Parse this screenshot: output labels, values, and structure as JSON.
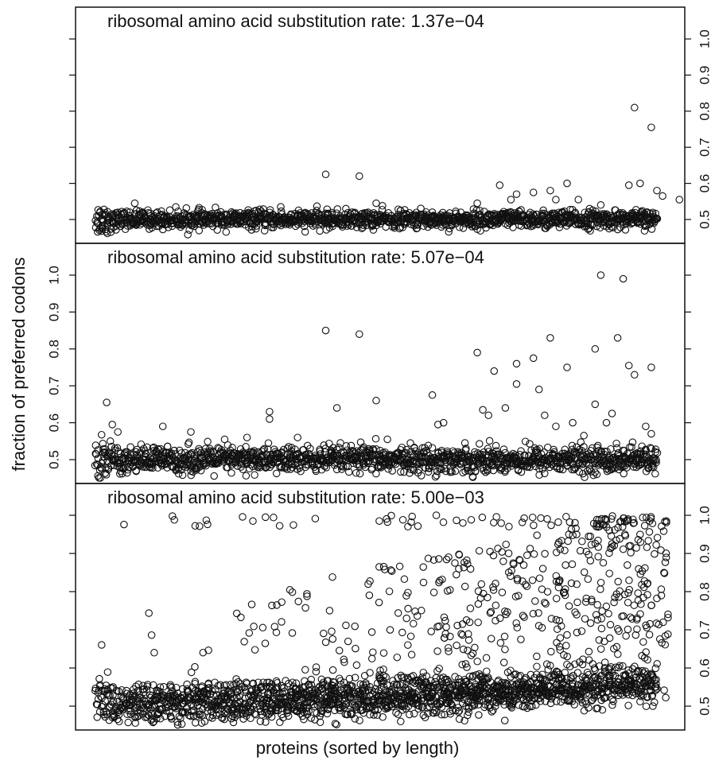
{
  "chart_data": {
    "type": "scatter",
    "xlabel": "proteins (sorted by length)",
    "ylabel": "fraction of preferred codons",
    "marker": "open-circle",
    "color": "#111111",
    "panels": [
      {
        "title": "ribosomal amino acid substitution rate: 1.37e−04",
        "ylim": [
          0.45,
          1.05
        ],
        "y_ticks": [
          "0.5",
          "0.6",
          "0.7",
          "0.8",
          "0.9",
          "1.0"
        ],
        "y_axis_side": "right",
        "baseline": 0.5,
        "spread": 0.012,
        "extra_points": [
          {
            "x": 0.41,
            "y": 0.625
          },
          {
            "x": 0.47,
            "y": 0.62
          },
          {
            "x": 0.5,
            "y": 0.545
          },
          {
            "x": 0.68,
            "y": 0.545
          },
          {
            "x": 0.72,
            "y": 0.595
          },
          {
            "x": 0.74,
            "y": 0.555
          },
          {
            "x": 0.75,
            "y": 0.57
          },
          {
            "x": 0.78,
            "y": 0.575
          },
          {
            "x": 0.81,
            "y": 0.58
          },
          {
            "x": 0.84,
            "y": 0.6
          },
          {
            "x": 0.86,
            "y": 0.555
          },
          {
            "x": 0.82,
            "y": 0.555
          },
          {
            "x": 0.88,
            "y": 0.53
          },
          {
            "x": 0.9,
            "y": 0.54
          },
          {
            "x": 0.95,
            "y": 0.595
          },
          {
            "x": 0.96,
            "y": 0.81
          },
          {
            "x": 0.97,
            "y": 0.6
          },
          {
            "x": 0.99,
            "y": 0.755
          },
          {
            "x": 1.0,
            "y": 0.58
          },
          {
            "x": 1.01,
            "y": 0.565
          },
          {
            "x": 1.05,
            "y": 0.555
          },
          {
            "x": 0.6,
            "y": 0.52
          },
          {
            "x": 0.33,
            "y": 0.535
          },
          {
            "x": 0.07,
            "y": 0.545
          }
        ]
      },
      {
        "title": "ribosomal amino acid substitution rate: 5.07e−04",
        "ylim": [
          0.45,
          1.05
        ],
        "y_ticks": [
          "0.5",
          "0.6",
          "0.7",
          "0.8",
          "0.9",
          "1.0"
        ],
        "y_axis_side": "left",
        "baseline": 0.5,
        "spread": 0.018,
        "extra_points": [
          {
            "x": 0.02,
            "y": 0.655
          },
          {
            "x": 0.03,
            "y": 0.595
          },
          {
            "x": 0.04,
            "y": 0.575
          },
          {
            "x": 0.12,
            "y": 0.59
          },
          {
            "x": 0.17,
            "y": 0.575
          },
          {
            "x": 0.31,
            "y": 0.63
          },
          {
            "x": 0.31,
            "y": 0.61
          },
          {
            "x": 0.41,
            "y": 0.85
          },
          {
            "x": 0.43,
            "y": 0.64
          },
          {
            "x": 0.47,
            "y": 0.84
          },
          {
            "x": 0.5,
            "y": 0.66
          },
          {
            "x": 0.6,
            "y": 0.675
          },
          {
            "x": 0.61,
            "y": 0.595
          },
          {
            "x": 0.62,
            "y": 0.6
          },
          {
            "x": 0.68,
            "y": 0.79
          },
          {
            "x": 0.69,
            "y": 0.635
          },
          {
            "x": 0.7,
            "y": 0.62
          },
          {
            "x": 0.71,
            "y": 0.74
          },
          {
            "x": 0.73,
            "y": 0.64
          },
          {
            "x": 0.75,
            "y": 0.705
          },
          {
            "x": 0.75,
            "y": 0.76
          },
          {
            "x": 0.78,
            "y": 0.775
          },
          {
            "x": 0.79,
            "y": 0.69
          },
          {
            "x": 0.8,
            "y": 0.62
          },
          {
            "x": 0.81,
            "y": 0.83
          },
          {
            "x": 0.82,
            "y": 0.59
          },
          {
            "x": 0.84,
            "y": 0.75
          },
          {
            "x": 0.85,
            "y": 0.6
          },
          {
            "x": 0.87,
            "y": 0.565
          },
          {
            "x": 0.89,
            "y": 0.8
          },
          {
            "x": 0.89,
            "y": 0.65
          },
          {
            "x": 0.9,
            "y": 1.0
          },
          {
            "x": 0.91,
            "y": 0.6
          },
          {
            "x": 0.92,
            "y": 0.625
          },
          {
            "x": 0.93,
            "y": 0.83
          },
          {
            "x": 0.94,
            "y": 0.99
          },
          {
            "x": 0.95,
            "y": 0.755
          },
          {
            "x": 0.96,
            "y": 0.73
          },
          {
            "x": 0.99,
            "y": 0.75
          },
          {
            "x": 0.98,
            "y": 0.59
          },
          {
            "x": 0.99,
            "y": 0.57
          },
          {
            "x": 0.23,
            "y": 0.555
          },
          {
            "x": 0.27,
            "y": 0.56
          },
          {
            "x": 0.36,
            "y": 0.56
          },
          {
            "x": 0.52,
            "y": 0.555
          }
        ]
      },
      {
        "title": "ribosomal amino acid substitution rate: 5.00e−03",
        "ylim": [
          0.45,
          1.05
        ],
        "y_ticks": [
          "0.5",
          "0.6",
          "0.7",
          "0.8",
          "0.9",
          "1.0"
        ],
        "y_axis_side": "right",
        "baseline": 0.5,
        "spread": 0.025,
        "trend": [
          0.0,
          0.0,
          0.5,
          0.04,
          1.0,
          0.15
        ],
        "scatter_cloud": {
          "count": 900,
          "ymax": 1.0
        }
      }
    ]
  }
}
